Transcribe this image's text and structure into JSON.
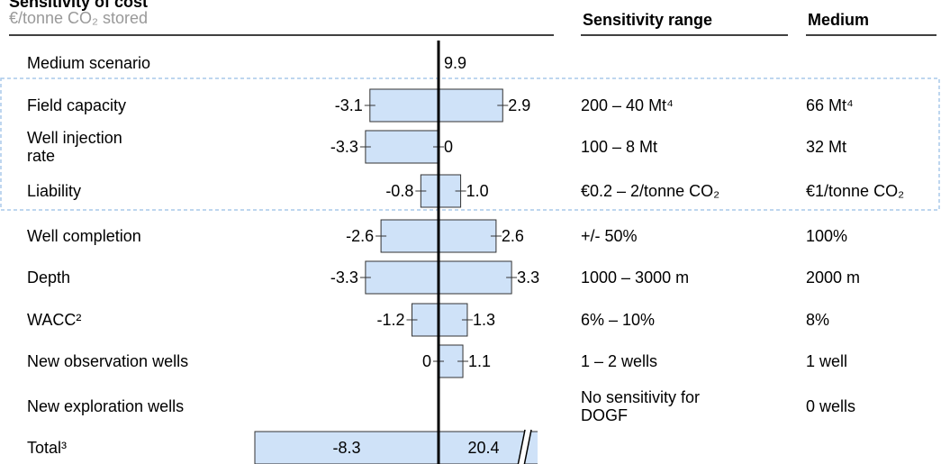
{
  "chart_data": {
    "type": "tornado",
    "title": "Sensitivity of cost",
    "subtitle": "€/tonne CO₂ stored",
    "range_header": "Sensitivity range",
    "medium_header": "Medium",
    "medium_scenario": {
      "label": "Medium scenario",
      "value": 9.9
    },
    "categories": [
      "Field capacity",
      "Well injection\nrate",
      "Liability",
      "Well completion",
      "Depth",
      "WACC²",
      "New observation wells",
      "New exploration wells",
      "Total³"
    ],
    "series": [
      {
        "color": "#cfe2f8",
        "values": [
          -3.1,
          -3.3,
          -0.8,
          -2.6,
          -3.3,
          -1.2,
          0,
          null,
          -8.3
        ],
        "value_labels": [
          "-3.1",
          "-3.3",
          "-0.8",
          "-2.6",
          "-3.3",
          "-1.2",
          "0",
          null,
          "-8.3"
        ]
      },
      {
        "color": "#cfe2f8",
        "values": [
          2.9,
          0,
          1.0,
          2.6,
          3.3,
          1.3,
          1.1,
          null,
          20.4
        ],
        "value_labels": [
          "2.9",
          "0",
          "1.0",
          "2.6",
          "3.3",
          "1.3",
          "1.1",
          null,
          "20.4"
        ]
      }
    ],
    "ranges": [
      "200 – 40 Mt⁴",
      "100 – 8 Mt",
      "€0.2 – 2/tonne CO₂",
      "+/- 50%",
      "1000 – 3000 m",
      "6% – 10%",
      "1 – 2 wells",
      "No sensitivity for\nDOGF",
      null
    ],
    "mediums": [
      "66 Mt⁴",
      "32 Mt",
      "€1/tonne CO₂",
      "100%",
      "2000 m",
      "8%",
      "1 well",
      "0 wells",
      null
    ],
    "xlim": [
      -8.3,
      4.4
    ]
  }
}
